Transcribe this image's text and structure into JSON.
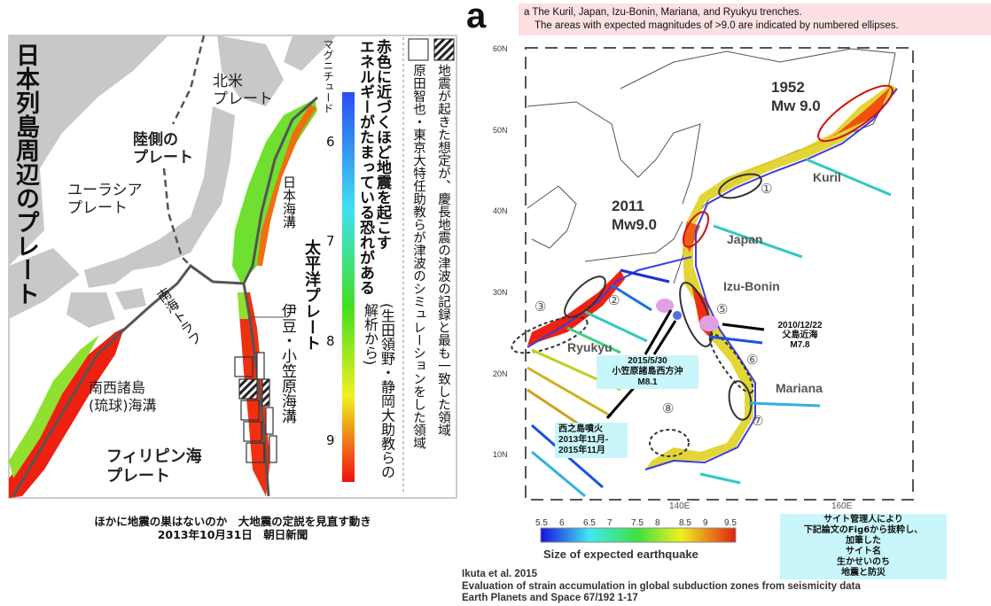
{
  "left_panel": {
    "title": "日本列島周辺のプレート",
    "labels": {
      "north_america": [
        "北米",
        "プレート"
      ],
      "land_plate": [
        "陸側の",
        "プレート"
      ],
      "eurasia": [
        "ユーラシア",
        "プレート"
      ],
      "japan_trench": "日本海溝",
      "pacific": "太平洋プレート",
      "nankai": "南海トラフ",
      "izu_ogasawara": "伊豆・小笠原海溝",
      "ryukyu": [
        "南西諸島",
        "(琉球)海溝"
      ],
      "philippine": [
        "フィリピン海",
        "プレート"
      ]
    },
    "colorbar": {
      "label": "マグニチュード",
      "ticks": [
        "6",
        "7",
        "8",
        "9"
      ],
      "colors": [
        "#2a4df0",
        "#40e0f0",
        "#40e020",
        "#f0f020",
        "#f01010"
      ]
    },
    "headline": [
      "赤色に近づくほど地震を起こす",
      "エネルギーがたまっている恐れがある"
    ],
    "source": "(生田領野・静岡大助教らの解析から)",
    "legend": {
      "hatched": "地震が起きた想定が、慶長地震の津波の記録と最も一致した領域",
      "white": "原田智也・東京大特任助教らが津波のシミュレーションをした領域"
    },
    "caption": [
      "ほかに地震の巣はないのか　大地震の定説を見直す動き",
      "2013年10月31日　朝日新聞"
    ]
  },
  "right_panel": {
    "panel_letter": "a",
    "header": [
      "a The Kuril, Japan, Izu-Bonin, Mariana, and Ryukyu trenches.",
      "The areas with expected magnitudes of >9.0 are indicated by numbered ellipses."
    ],
    "lat_ticks": [
      "60N",
      "50N",
      "40N",
      "30N",
      "20N",
      "10N"
    ],
    "lon_ticks": [
      "140E",
      "160E"
    ],
    "events": {
      "e1952": [
        "1952",
        "Mw 9.0"
      ],
      "e2011": [
        "2011",
        "Mw9.0"
      ]
    },
    "trench_labels": [
      "Kuril",
      "Japan",
      "Izu-Bonin",
      "Ryukyu",
      "Mariana"
    ],
    "ellipse_numbers": [
      "①",
      "②",
      "③",
      "⑤",
      "⑥",
      "⑦",
      "⑧"
    ],
    "callouts": {
      "chichijima": [
        "2010/12/22",
        "父島近海",
        "M7.8"
      ],
      "ogasawara": [
        "2015/5/30",
        "小笠原諸島西方沖",
        "M8.1"
      ],
      "nishinoshima": [
        "西之島噴火",
        "2013年11月-",
        "2015年11月"
      ]
    },
    "colorbar": {
      "ticks": [
        "5.5",
        "6",
        "6.5",
        "7",
        "7.5",
        "8",
        "8.5",
        "9",
        "9.5"
      ],
      "title": "Size of expected earthquake",
      "colors": [
        "#1a10e0",
        "#40e8f0",
        "#40e040",
        "#f0f020",
        "#e02010"
      ]
    },
    "site_note": [
      "サイト管理人により",
      "下記論文のFig6から抜粋し、",
      "加筆した",
      "サイト名",
      "生かせいのち",
      "地震と防災"
    ],
    "citation": [
      "Ikuta et al. 2015",
      "Evaluation of strain accumulation in global subduction zones from seismicity data",
      "Earth Planets and Space 67/192 1-17"
    ]
  }
}
